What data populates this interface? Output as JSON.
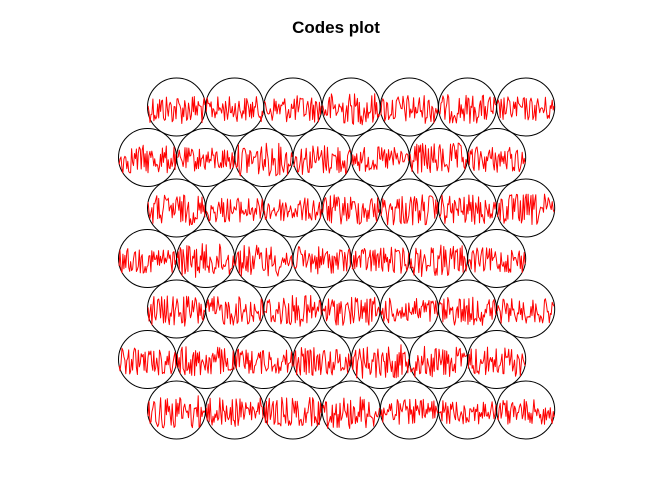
{
  "chart_data": {
    "type": "som-codes",
    "title": "Codes plot",
    "grid": {
      "topology": "hexagonal",
      "rows": 7,
      "cols": 7
    },
    "codes_per_unit": 60,
    "line_color": "#ff0000",
    "circle_color": "#000000",
    "units": [
      {
        "row": 1,
        "col": 1
      },
      {
        "row": 1,
        "col": 2
      },
      {
        "row": 1,
        "col": 3
      },
      {
        "row": 1,
        "col": 4
      },
      {
        "row": 1,
        "col": 5
      },
      {
        "row": 1,
        "col": 6
      },
      {
        "row": 1,
        "col": 7
      },
      {
        "row": 2,
        "col": 1
      },
      {
        "row": 2,
        "col": 2
      },
      {
        "row": 2,
        "col": 3
      },
      {
        "row": 2,
        "col": 4
      },
      {
        "row": 2,
        "col": 5
      },
      {
        "row": 2,
        "col": 6
      },
      {
        "row": 2,
        "col": 7
      },
      {
        "row": 3,
        "col": 1
      },
      {
        "row": 3,
        "col": 2
      },
      {
        "row": 3,
        "col": 3
      },
      {
        "row": 3,
        "col": 4
      },
      {
        "row": 3,
        "col": 5
      },
      {
        "row": 3,
        "col": 6
      },
      {
        "row": 3,
        "col": 7
      },
      {
        "row": 4,
        "col": 1
      },
      {
        "row": 4,
        "col": 2
      },
      {
        "row": 4,
        "col": 3
      },
      {
        "row": 4,
        "col": 4
      },
      {
        "row": 4,
        "col": 5
      },
      {
        "row": 4,
        "col": 6
      },
      {
        "row": 4,
        "col": 7
      },
      {
        "row": 5,
        "col": 1
      },
      {
        "row": 5,
        "col": 2
      },
      {
        "row": 5,
        "col": 3
      },
      {
        "row": 5,
        "col": 4
      },
      {
        "row": 5,
        "col": 5
      },
      {
        "row": 5,
        "col": 6
      },
      {
        "row": 5,
        "col": 7
      },
      {
        "row": 6,
        "col": 1
      },
      {
        "row": 6,
        "col": 2
      },
      {
        "row": 6,
        "col": 3
      },
      {
        "row": 6,
        "col": 4
      },
      {
        "row": 6,
        "col": 5
      },
      {
        "row": 6,
        "col": 6
      },
      {
        "row": 6,
        "col": 7
      },
      {
        "row": 7,
        "col": 1
      },
      {
        "row": 7,
        "col": 2
      },
      {
        "row": 7,
        "col": 3
      },
      {
        "row": 7,
        "col": 4
      },
      {
        "row": 7,
        "col": 5
      },
      {
        "row": 7,
        "col": 6
      },
      {
        "row": 7,
        "col": 7
      }
    ]
  }
}
